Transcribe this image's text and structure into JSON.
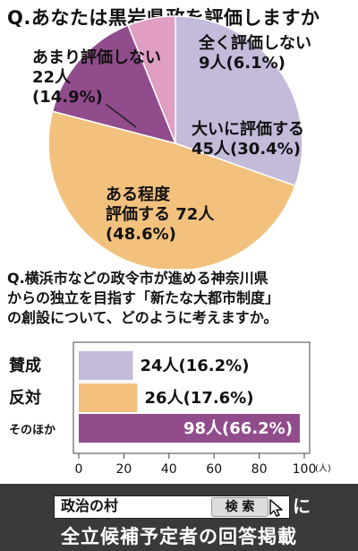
{
  "question1": "Q.あなたは黒岩県政を評価しますか",
  "question2": "Q.横浜市などの政令市が進める神奈川県\nからの独立を目指す「新たな大都市制度」\nの創設について、どのように考えますか。",
  "colors": {
    "pink": "#df9ec2",
    "lavender": "#c4bada",
    "orange": "#f2c17d",
    "purple": "#914c8c",
    "banner": "#3a3a3a"
  },
  "chart_data": [
    {
      "type": "pie",
      "title": "Q.あなたは黒岩県政を評価しますか",
      "slices": [
        {
          "label": "大いに評価する",
          "value": 45,
          "percent": 30.4,
          "display": "大いに評価する\n45人(30.4%)",
          "color": "#c4bada"
        },
        {
          "label": "ある程度評価する",
          "value": 72,
          "percent": 48.6,
          "display": "ある程度\n評価する 72人\n(48.6%)",
          "color": "#f2c17d"
        },
        {
          "label": "あまり評価しない",
          "value": 22,
          "percent": 14.9,
          "display": "あまり評価しない\n22人\n(14.9%)",
          "color": "#914c8c"
        },
        {
          "label": "全く評価しない",
          "value": 9,
          "percent": 6.1,
          "display": "全く評価しない\n9人(6.1%)",
          "color": "#df9ec2"
        }
      ]
    },
    {
      "type": "bar",
      "orientation": "horizontal",
      "categories": [
        "賛成",
        "反対",
        "そのほか"
      ],
      "values": [
        24,
        26,
        98
      ],
      "percents": [
        16.2,
        17.6,
        66.2
      ],
      "value_labels": [
        "24人(16.2%)",
        "26人(17.6%)",
        "98人(66.2%)"
      ],
      "colors": [
        "#c4bada",
        "#f2c17d",
        "#914c8c"
      ],
      "xlim": [
        0,
        100
      ],
      "xticks": [
        0,
        20,
        40,
        60,
        80,
        100
      ],
      "xunit": "(人)"
    }
  ],
  "banner": {
    "search_text": "政治の村",
    "search_button": "検 索",
    "search_suffix": "に",
    "caption": "全立候補予定者の回答掲載"
  }
}
